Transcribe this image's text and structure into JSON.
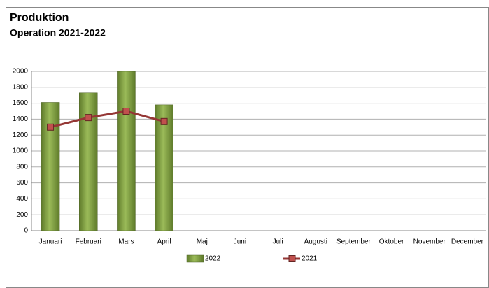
{
  "chart_data": {
    "type": "bar",
    "title": "Produktion",
    "subtitle": "Operation 2021-2022",
    "categories": [
      "Januari",
      "Februari",
      "Mars",
      "April",
      "Maj",
      "Juni",
      "Juli",
      "Augusti",
      "September",
      "Oktober",
      "November",
      "December"
    ],
    "series": [
      {
        "name": "2022",
        "type": "bar",
        "color": "#77933c",
        "values": [
          1610,
          1730,
          2000,
          1580,
          null,
          null,
          null,
          null,
          null,
          null,
          null,
          null
        ]
      },
      {
        "name": "2021",
        "type": "line",
        "color": "#953735",
        "values": [
          1300,
          1420,
          1500,
          1370,
          null,
          null,
          null,
          null,
          null,
          null,
          null,
          null
        ]
      }
    ],
    "ylim": [
      0,
      2000
    ],
    "yticks": [
      0,
      200,
      400,
      600,
      800,
      1000,
      1200,
      1400,
      1600,
      1800,
      2000
    ],
    "grid": true,
    "legend": "bottom"
  }
}
